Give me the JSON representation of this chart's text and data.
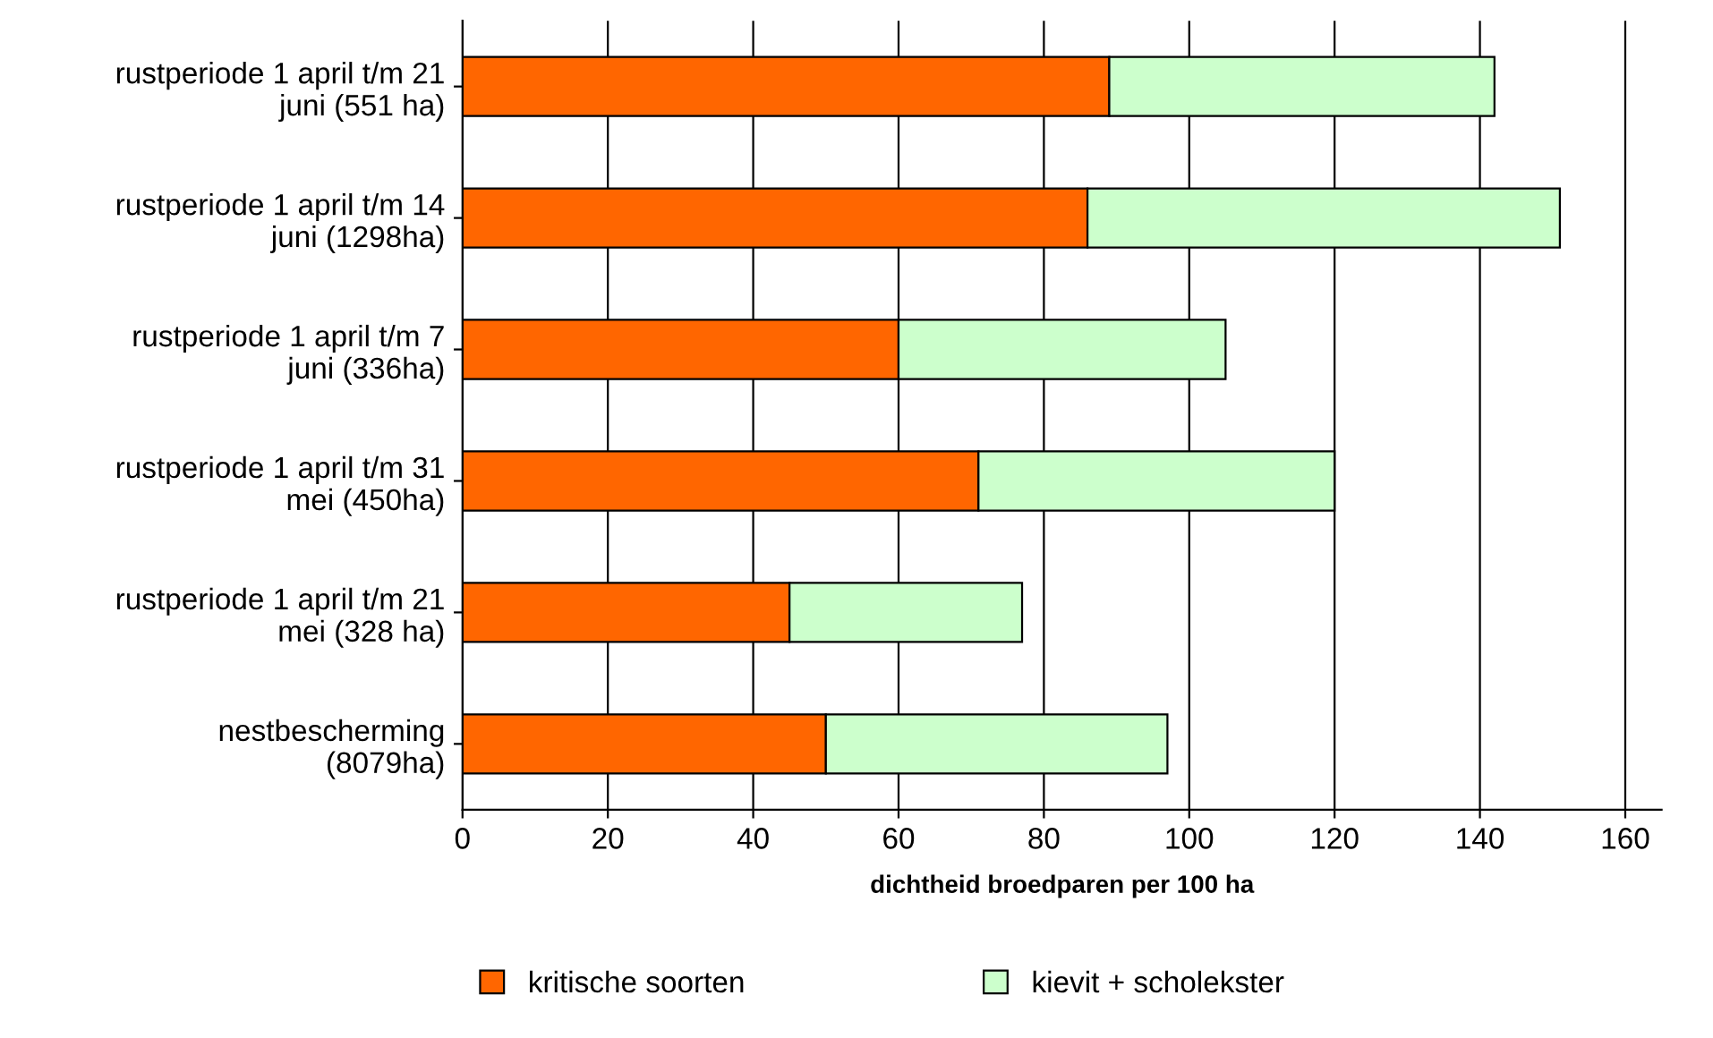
{
  "chart_data": {
    "type": "bar",
    "orientation": "horizontal",
    "stacked": true,
    "xlabel": "dichtheid broedparen per 100 ha",
    "categories": [
      "rustperiode 1 april t/m 21\njuni (551 ha)",
      "rustperiode 1 april t/m 14\njuni (1298ha)",
      "rustperiode 1 april t/m 7\njuni (336ha)",
      "rustperiode 1 april t/m 31\nmei (450ha)",
      "rustperiode 1 april t/m 21\nmei (328 ha)",
      "nestbescherming\n(8079ha)"
    ],
    "series": [
      {
        "name": "kritische soorten",
        "color": "#ff6600",
        "values": [
          89,
          86,
          60,
          71,
          45,
          50
        ]
      },
      {
        "name": "kievit + scholekster",
        "color": "#ccffcc",
        "values": [
          53,
          65,
          45,
          49,
          32,
          47
        ]
      }
    ],
    "xlim": [
      0,
      165
    ],
    "xticks": [
      0,
      20,
      40,
      60,
      80,
      100,
      120,
      140,
      160
    ],
    "grid": "x",
    "legend": "bottom"
  }
}
